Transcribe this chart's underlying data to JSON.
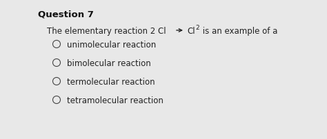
{
  "title": "Question 7",
  "options": [
    "unimolecular reaction",
    "bimolecular reaction",
    "termolecular reaction",
    "tetramolecular reaction"
  ],
  "bg_color": "#e8e8e8",
  "title_color": "#111111",
  "text_color": "#222222",
  "title_fontsize": 9.5,
  "question_fontsize": 8.5,
  "option_fontsize": 8.5
}
